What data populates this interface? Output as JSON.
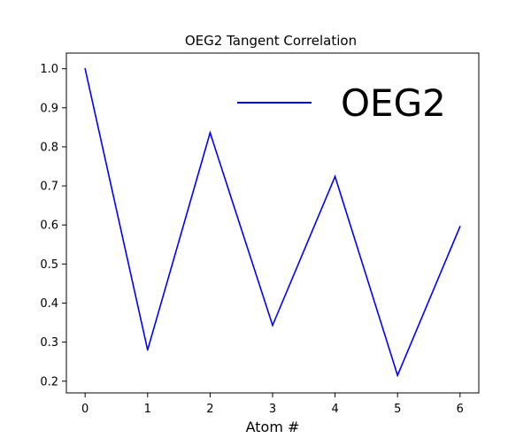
{
  "chart_data": {
    "type": "line",
    "title": "OEG2 Tangent Correlation",
    "xlabel": "Atom #",
    "ylabel": "",
    "x": [
      0,
      1,
      2,
      3,
      4,
      5,
      6
    ],
    "series": [
      {
        "name": "OEG2",
        "color": "#0000ff",
        "values": [
          1.0,
          0.28,
          0.836,
          0.343,
          0.724,
          0.215,
          0.596
        ]
      }
    ],
    "xlim": [
      -0.3,
      6.3
    ],
    "ylim": [
      0.17,
      1.04
    ],
    "xticks": [
      "0",
      "1",
      "2",
      "3",
      "4",
      "5",
      "6"
    ],
    "yticks": [
      "0.2",
      "0.3",
      "0.4",
      "0.5",
      "0.6",
      "0.7",
      "0.8",
      "0.9",
      "1.0"
    ],
    "grid": false,
    "legend": "top-right"
  }
}
